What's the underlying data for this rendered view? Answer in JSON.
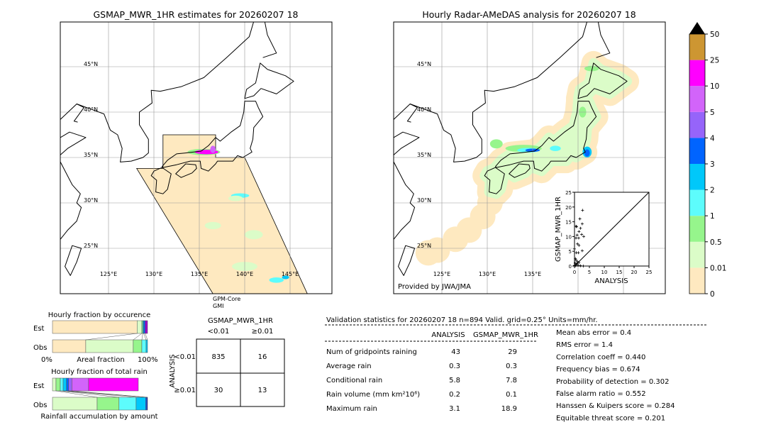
{
  "left_map": {
    "title": "GSMAP_MWR_1HR estimates for 20260207 18",
    "lat_labels": [
      "45°N",
      "40°N",
      "35°N",
      "30°N",
      "25°N"
    ],
    "lon_labels": [
      "125°E",
      "130°E",
      "135°E",
      "140°E",
      "145°E"
    ],
    "satellite": "GPM-Core",
    "sensor": "GMI"
  },
  "right_map": {
    "title": "Hourly Radar-AMeDAS analysis for 20260207 18",
    "lat_labels": [
      "45°N",
      "40°N",
      "35°N",
      "30°N",
      "25°N"
    ],
    "lon_labels": [
      "125°E",
      "130°E",
      "135°E"
    ],
    "credit": "Provided by JWA/JMA"
  },
  "colorbar": {
    "labels": [
      "0",
      "0.01",
      "0.5",
      "1",
      "2",
      "3",
      "4",
      "5",
      "10",
      "25",
      "50"
    ],
    "colors": [
      "#fee9c0",
      "#dbfcc8",
      "#96f58c",
      "#5dfcfc",
      "#00c8fa",
      "#0064ff",
      "#9664fa",
      "#d264fa",
      "#ff00ff",
      "#cd9632"
    ],
    "over_color": "#000000"
  },
  "chart_data": [
    {
      "type": "scatter",
      "xlabel": "ANALYSIS",
      "ylabel": "GSMAP_MWR_1HR",
      "xlim": [
        0,
        25
      ],
      "ylim": [
        0,
        25
      ],
      "ticks": [
        "0",
        "5",
        "10",
        "15",
        "20",
        "25"
      ],
      "points": [
        [
          0.5,
          13.5
        ],
        [
          0.7,
          13.3
        ],
        [
          2.7,
          18.9
        ],
        [
          1.8,
          16
        ],
        [
          2.6,
          14.3
        ],
        [
          2.0,
          12.8
        ],
        [
          1.5,
          11.7
        ],
        [
          0.9,
          10.5
        ],
        [
          0.5,
          9.5
        ],
        [
          1.4,
          9.5
        ],
        [
          2.4,
          10.7
        ],
        [
          3.1,
          10
        ],
        [
          1.0,
          7.5
        ],
        [
          1.5,
          7
        ],
        [
          0.0,
          5.8
        ],
        [
          0.6,
          4.5
        ],
        [
          1.3,
          4.5
        ],
        [
          2.6,
          5.2
        ],
        [
          0.3,
          2.5
        ],
        [
          0.5,
          2
        ],
        [
          1.0,
          1.5
        ],
        [
          0.2,
          1
        ],
        [
          0.5,
          0.5
        ],
        [
          1.2,
          0.3
        ],
        [
          2.0,
          0.1
        ],
        [
          3.0,
          0
        ],
        [
          0.0,
          0.2
        ],
        [
          0.8,
          0.8
        ],
        [
          1.5,
          1.2
        ],
        [
          0.3,
          0.1
        ]
      ]
    },
    {
      "type": "bar",
      "title": "Hourly fraction by occurence",
      "xlabel": "Areal fraction",
      "tick_left": "0%",
      "tick_right": "100%",
      "rows": [
        {
          "label": "Est",
          "values": [
            89,
            5,
            1,
            1,
            1.5,
            2.5
          ],
          "colors": [
            "#fee9c0",
            "#dbfcc8",
            "#96f58c",
            "#00c8fa",
            "#0064ff",
            "#9a00c8"
          ]
        },
        {
          "label": "Obs",
          "values": [
            35,
            50,
            9,
            4.5,
            1.5
          ],
          "colors": [
            "#fee9c0",
            "#dbfcc8",
            "#96f58c",
            "#5dfcfc",
            "#00c8fa"
          ]
        }
      ]
    },
    {
      "type": "bar",
      "title": "Hourly fraction of total rain",
      "xlabel": "Rainfall accumulation by amount",
      "rows": [
        {
          "label": "Est",
          "values": [
            3.7,
            4.5,
            3,
            3.5,
            2.2,
            3.5,
            17.6,
            52.3
          ],
          "colors": [
            "#dbfcc8",
            "#96f58c",
            "#5dfcfc",
            "#00c8fa",
            "#0064ff",
            "#9664fa",
            "#d264fa",
            "#ff00ff"
          ]
        },
        {
          "label": "Obs",
          "values": [
            47,
            23,
            18,
            10,
            1.3,
            0.7
          ],
          "colors": [
            "#dbfcc8",
            "#96f58c",
            "#5dfcfc",
            "#00c8fa",
            "#0064ff",
            "#0000c8"
          ]
        }
      ]
    }
  ],
  "contingency": {
    "title": "GSMAP_MWR_1HR",
    "col_labels": [
      "<0.01",
      "≥0.01"
    ],
    "row_title": "ANALYSIS",
    "row_labels": [
      "<0.01",
      "≥0.01"
    ],
    "cells": [
      [
        "835",
        "16"
      ],
      [
        "30",
        "13"
      ]
    ]
  },
  "stats": {
    "title": "Validation statistics for 20260207 18  n=894 Valid. grid=0.25° Units=mm/hr.",
    "col_headers": [
      "ANALYSIS",
      "GSMAP_MWR_1HR"
    ],
    "rows": [
      {
        "label": "Num of gridpoints raining",
        "analysis": "43",
        "gsmap": "29"
      },
      {
        "label": "Average rain",
        "analysis": "0.3",
        "gsmap": "0.3"
      },
      {
        "label": "Conditional rain",
        "analysis": "5.8",
        "gsmap": "7.8"
      },
      {
        "label": "Rain volume (mm km²10⁶)",
        "analysis": "0.2",
        "gsmap": "0.1"
      },
      {
        "label": "Maximum rain",
        "analysis": "3.1",
        "gsmap": "18.9"
      }
    ],
    "scores": [
      "Mean abs error =    0.4",
      "RMS error =    1.4",
      "Correlation coeff =  0.440",
      "Frequency bias =  0.674",
      "Probability of detection =  0.302",
      "False alarm ratio =  0.552",
      "Hanssen & Kuipers score =  0.284",
      "Equitable threat score =  0.201"
    ]
  }
}
